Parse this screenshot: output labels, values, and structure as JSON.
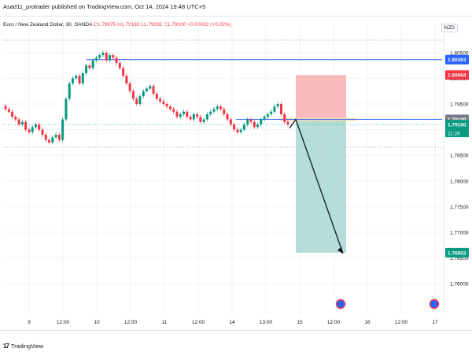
{
  "header": {
    "published": "Asad11_protrader published on TradingView.com, Oct 14, 2024 19:48 UTC+5"
  },
  "legend": {
    "symbol": "Euro / New Zealand Dollar, 30, OANDA",
    "ohlc": "O1.79075  H1.79182  L1.79032  C1.79100  +0.00032 (+0.02%)"
  },
  "currency": "NZD",
  "footer": {
    "logo": "17",
    "brand": "TradingView"
  },
  "colors": {
    "up": "#089981",
    "down": "#f23645",
    "blue": "#2962ff",
    "stop": "#f7b3b3",
    "target": "#a7d8d0"
  },
  "chart_data": {
    "type": "candlestick",
    "ylim": [
      1.7545,
      1.8085
    ],
    "y_ticks": [
      "1.80500",
      "1.80000",
      "1.79500",
      "1.79000",
      "1.78500",
      "1.78000",
      "1.77500",
      "1.77000",
      "1.76500",
      "1.76000"
    ],
    "x_ticks": [
      "9",
      "12:00",
      "10",
      "12:00",
      "11",
      "12:00",
      "14",
      "13:00",
      "15",
      "12:00",
      "16",
      "12:00",
      "17"
    ],
    "price_labels": [
      {
        "text": "1.80363",
        "value": 1.80363,
        "color": "#2962ff"
      },
      {
        "text": "1.80064",
        "value": 1.80064,
        "color": "#f23645"
      },
      {
        "text": "1.79201",
        "value": 1.79201,
        "color": "#2962ff"
      },
      {
        "text": "1.79199",
        "value": 1.79199,
        "color": "#787b86"
      },
      {
        "text": "1.79100",
        "value": 1.791,
        "color": "#089981"
      },
      {
        "text": "1.76603",
        "value": 1.76603,
        "color": "#089981"
      }
    ],
    "countdown": "11:28",
    "horizontal_lines": [
      {
        "name": "resistance",
        "value": 1.80363,
        "color": "#2962ff"
      },
      {
        "name": "support",
        "value": 1.79201,
        "color": "#2962ff"
      }
    ],
    "short_position": {
      "entry": 1.79199,
      "stop": 1.80064,
      "target": 1.76603
    },
    "close_series": [
      1.794,
      1.7935,
      1.7925,
      1.792,
      1.791,
      1.7915,
      1.79,
      1.7895,
      1.7905,
      1.791,
      1.79,
      1.789,
      1.788,
      1.7875,
      1.7885,
      1.789,
      1.788,
      1.792,
      1.796,
      1.799,
      1.8,
      1.8005,
      1.799,
      1.801,
      1.8025,
      1.802,
      1.8035,
      1.804,
      1.8045,
      1.805,
      1.8035,
      1.8045,
      1.804,
      1.803,
      1.802,
      1.8005,
      1.799,
      1.7975,
      1.796,
      1.795,
      1.7965,
      1.7975,
      1.798,
      1.7985,
      1.797,
      1.796,
      1.7955,
      1.795,
      1.7945,
      1.794,
      1.7935,
      1.7925,
      1.793,
      1.7935,
      1.7925,
      1.792,
      1.793,
      1.7925,
      1.7915,
      1.792,
      1.793,
      1.7935,
      1.794,
      1.7945,
      1.794,
      1.793,
      1.792,
      1.791,
      1.79,
      1.7895,
      1.79,
      1.791,
      1.792,
      1.7915,
      1.7905,
      1.791,
      1.792,
      1.7925,
      1.793,
      1.7935,
      1.7945,
      1.795,
      1.793,
      1.7915,
      1.791
    ]
  }
}
